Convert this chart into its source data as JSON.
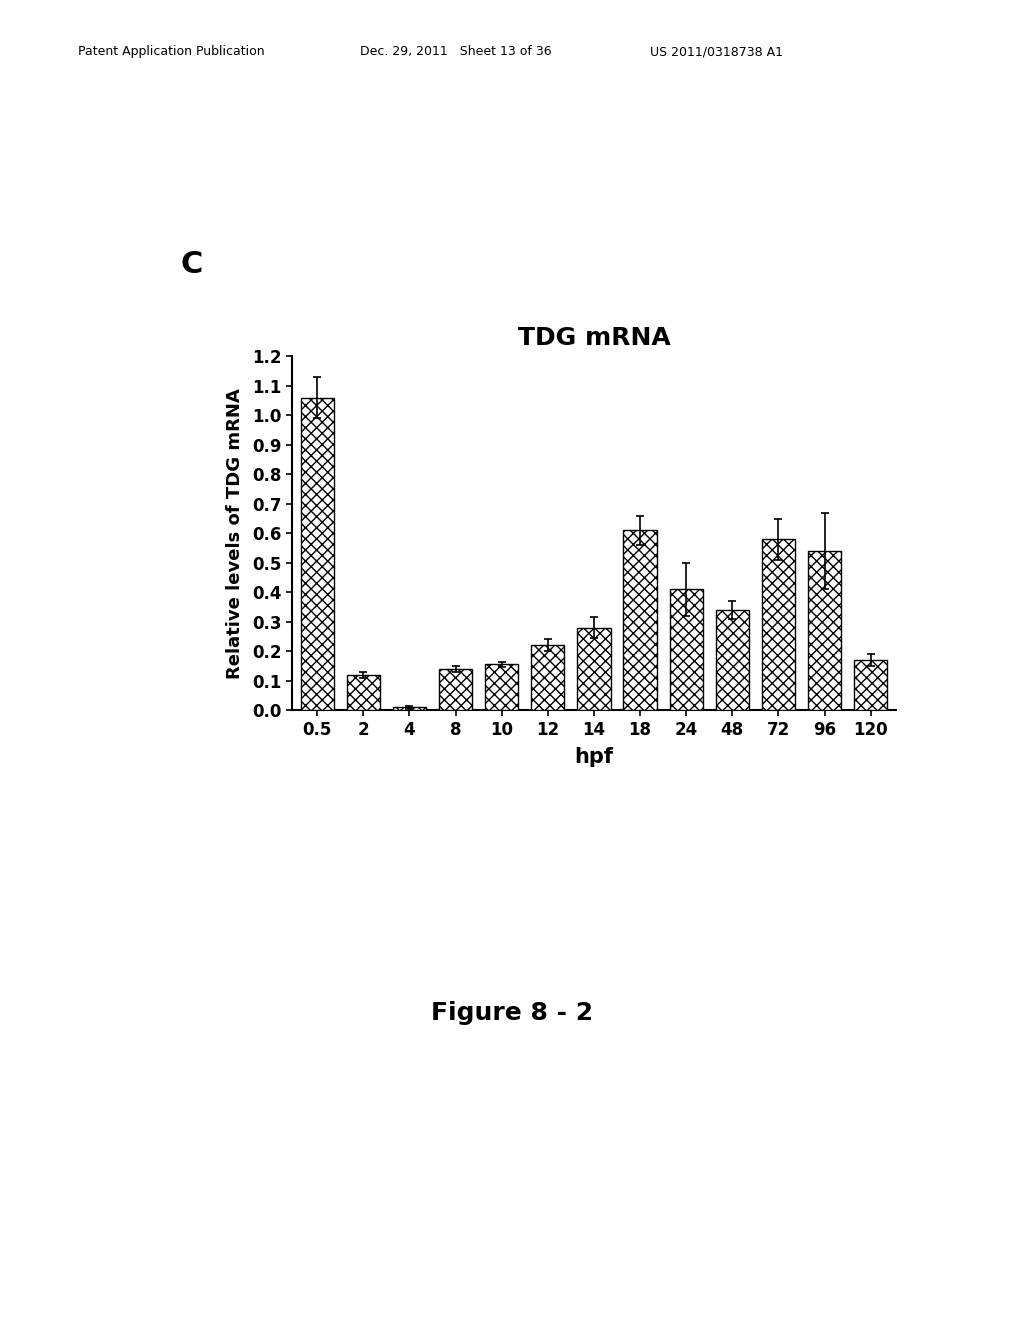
{
  "title": "TDG mRNA",
  "xlabel": "hpf",
  "ylabel": "Relative levels of TDG mRNA",
  "panel_label": "C",
  "figure_label": "Figure 8 - 2",
  "categories": [
    "0.5",
    "2",
    "4",
    "8",
    "10",
    "12",
    "14",
    "18",
    "24",
    "48",
    "72",
    "96",
    "120"
  ],
  "values": [
    1.06,
    0.12,
    0.01,
    0.14,
    0.155,
    0.22,
    0.28,
    0.61,
    0.41,
    0.34,
    0.58,
    0.54,
    0.17
  ],
  "errors": [
    0.07,
    0.01,
    0.005,
    0.01,
    0.01,
    0.02,
    0.035,
    0.05,
    0.09,
    0.03,
    0.07,
    0.13,
    0.02
  ],
  "ylim": [
    0.0,
    1.2
  ],
  "yticks": [
    0.0,
    0.1,
    0.2,
    0.3,
    0.4,
    0.5,
    0.6,
    0.7,
    0.8,
    0.9,
    1.0,
    1.1,
    1.2
  ],
  "background_color": "#ffffff",
  "hatch_pattern": "xxx",
  "title_fontsize": 18,
  "label_fontsize": 13,
  "tick_fontsize": 12,
  "panel_label_fontsize": 22,
  "figure_label_fontsize": 18,
  "header_fontsize": 9
}
